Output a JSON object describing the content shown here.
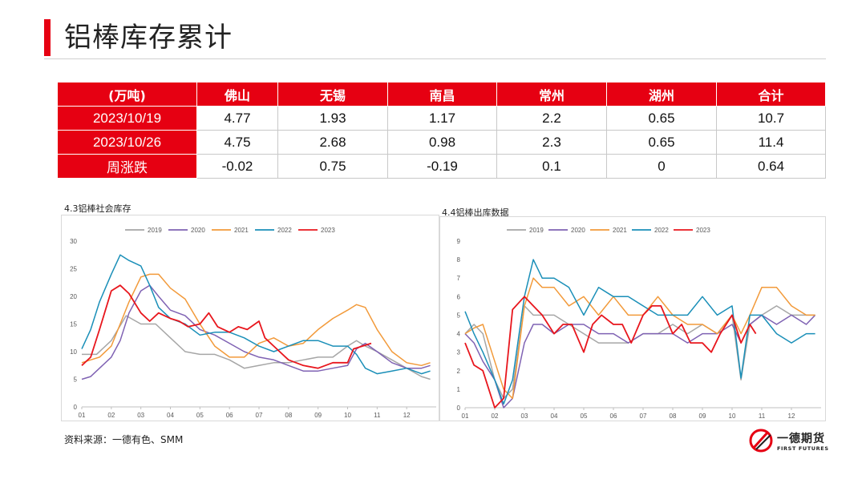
{
  "page_title": "铝棒库存累计",
  "table": {
    "headers": [
      "(万吨)",
      "佛山",
      "无锡",
      "南昌",
      "常州",
      "湖州",
      "合计"
    ],
    "rows": [
      {
        "label": "2023/10/19",
        "values": [
          "4.77",
          "1.93",
          "1.17",
          "2.2",
          "0.65",
          "10.7"
        ]
      },
      {
        "label": "2023/10/26",
        "values": [
          "4.75",
          "2.68",
          "0.98",
          "2.3",
          "0.65",
          "11.4"
        ]
      },
      {
        "label": "周涨跌",
        "values": [
          "-0.02",
          "0.75",
          "-0.19",
          "0.1",
          "0",
          "0.64"
        ]
      }
    ]
  },
  "colors": {
    "accent": "#e60012",
    "s2019": "#a6a6a6",
    "s2020": "#7f62b3",
    "s2021": "#f29a3a",
    "s2022": "#1a8fb8",
    "s2023": "#e8161d"
  },
  "chart_data": [
    {
      "type": "line",
      "title": "4.3铝棒社会库存",
      "x_ticks": [
        "01",
        "02",
        "03",
        "04",
        "05",
        "06",
        "07",
        "08",
        "09",
        "10",
        "11",
        "12"
      ],
      "ylim": [
        0,
        30
      ],
      "y_ticks": [
        "0",
        "5",
        "10",
        "15",
        "20",
        "25",
        "30"
      ],
      "x_domain": [
        1,
        13
      ],
      "series": [
        {
          "name": "2019",
          "color": "#a6a6a6",
          "x": [
            1,
            1.5,
            2,
            2.5,
            3,
            3.5,
            4,
            4.5,
            5,
            5.5,
            6,
            6.5,
            7,
            7.5,
            8,
            8.5,
            9,
            9.5,
            10,
            10.3,
            10.6,
            11,
            11.5,
            12,
            12.5,
            12.8
          ],
          "y": [
            9.5,
            9.5,
            12,
            16.5,
            15,
            15,
            12.5,
            10,
            9.5,
            9.5,
            8.5,
            7,
            7.5,
            8,
            8,
            8.5,
            9,
            9,
            11,
            12,
            11,
            10,
            8.5,
            7,
            5.5,
            5
          ]
        },
        {
          "name": "2020",
          "color": "#7f62b3",
          "x": [
            1,
            1.3,
            1.6,
            2,
            2.3,
            2.6,
            3,
            3.3,
            3.6,
            4,
            4.5,
            5,
            5.5,
            6,
            6.5,
            7,
            7.5,
            8,
            8.5,
            9,
            9.5,
            10,
            10.3,
            10.6,
            11,
            11.5,
            12,
            12.5,
            12.8
          ],
          "y": [
            5,
            5.5,
            7,
            9,
            12,
            17,
            21,
            22,
            20,
            17.5,
            16.5,
            14,
            13,
            11.5,
            10,
            9,
            8.5,
            7.5,
            6.5,
            6.5,
            7,
            7.5,
            10.5,
            11.5,
            10,
            8,
            7,
            7,
            7.5
          ]
        },
        {
          "name": "2021",
          "color": "#f29a3a",
          "x": [
            1,
            1.3,
            1.6,
            2,
            2.3,
            2.6,
            3,
            3.3,
            3.6,
            4,
            4.5,
            5,
            5.5,
            6,
            6.5,
            7,
            7.5,
            8,
            8.5,
            9,
            9.5,
            10,
            10.3,
            10.6,
            11,
            11.5,
            12,
            12.5,
            12.8
          ],
          "y": [
            8,
            8.5,
            9,
            11,
            15,
            19,
            23.5,
            24,
            24,
            21.5,
            19.5,
            15,
            11,
            9,
            9,
            11.5,
            12.5,
            11,
            11.5,
            14,
            16,
            17.5,
            18.5,
            18,
            14,
            10,
            8,
            7.5,
            8
          ]
        },
        {
          "name": "2022",
          "color": "#1a8fb8",
          "x": [
            1,
            1.3,
            1.6,
            2,
            2.3,
            2.6,
            3,
            3.3,
            3.6,
            4,
            4.5,
            5,
            5.5,
            6,
            6.5,
            7,
            7.5,
            8,
            8.5,
            9,
            9.5,
            10,
            10.3,
            10.6,
            11,
            11.5,
            12,
            12.5,
            12.8
          ],
          "y": [
            10.5,
            14,
            19,
            24,
            27.5,
            26.5,
            25.5,
            22,
            18,
            16,
            15,
            13,
            13.5,
            13.5,
            12.5,
            11,
            10,
            11,
            12,
            12,
            11,
            11,
            9.5,
            7,
            6,
            6.5,
            7,
            6,
            6.5
          ]
        },
        {
          "name": "2023",
          "color": "#e8161d",
          "x": [
            1,
            1.3,
            1.6,
            2,
            2.3,
            2.6,
            3,
            3.3,
            3.6,
            4,
            4.3,
            4.6,
            5,
            5.3,
            5.6,
            6,
            6.3,
            6.6,
            7,
            7.2,
            7.5,
            8,
            8.5,
            9,
            9.5,
            10,
            10.2,
            10.5,
            10.8
          ],
          "y": [
            7.5,
            9,
            14,
            21,
            22,
            20.5,
            17,
            15.5,
            17,
            16,
            15.5,
            14.5,
            15,
            17,
            14.5,
            13.5,
            14.5,
            14,
            15.5,
            12.5,
            11,
            8.5,
            7.5,
            7,
            8,
            8,
            10.5,
            11,
            11.5
          ]
        }
      ]
    },
    {
      "type": "line",
      "title": "4.4铝棒出库数据",
      "x_ticks": [
        "01",
        "02",
        "03",
        "04",
        "05",
        "06",
        "07",
        "08",
        "09",
        "10",
        "11",
        "12"
      ],
      "ylim": [
        0,
        9
      ],
      "y_ticks": [
        "0",
        "1",
        "2",
        "3",
        "4",
        "5",
        "6",
        "7",
        "8",
        "9"
      ],
      "x_domain": [
        1,
        13
      ],
      "series": [
        {
          "name": "2019",
          "color": "#a6a6a6",
          "x": [
            1,
            1.3,
            1.6,
            2,
            2.3,
            2.6,
            3,
            3.3,
            3.6,
            4,
            4.5,
            5,
            5.5,
            6,
            6.5,
            7,
            7.5,
            8,
            8.5,
            9,
            9.5,
            10,
            10.3,
            10.6,
            11,
            11.5,
            12,
            12.5,
            12.8
          ],
          "y": [
            4,
            4.5,
            4,
            1.5,
            0.5,
            1,
            5.5,
            5,
            5,
            5,
            4.5,
            4,
            3.5,
            3.5,
            3.5,
            4,
            4,
            4.5,
            4,
            4.5,
            4,
            5,
            1.5,
            4.5,
            5,
            5.5,
            5,
            5,
            5
          ]
        },
        {
          "name": "2020",
          "color": "#7f62b3",
          "x": [
            1,
            1.3,
            1.6,
            2,
            2.3,
            2.6,
            3,
            3.3,
            3.6,
            4,
            4.5,
            5,
            5.5,
            6,
            6.5,
            7,
            7.5,
            8,
            8.5,
            9,
            9.5,
            10,
            10.3,
            10.6,
            11,
            11.5,
            12,
            12.5,
            12.8
          ],
          "y": [
            4,
            3.5,
            2.5,
            1.5,
            0,
            0.5,
            3.5,
            4.5,
            4.5,
            4,
            4.5,
            4.5,
            4,
            4,
            3.5,
            4,
            4,
            4,
            3.5,
            4,
            4,
            4.5,
            3.5,
            4.5,
            5,
            4.5,
            5,
            4.5,
            5
          ]
        },
        {
          "name": "2021",
          "color": "#f29a3a",
          "x": [
            1,
            1.3,
            1.6,
            2,
            2.3,
            2.6,
            3,
            3.3,
            3.6,
            4,
            4.5,
            5,
            5.5,
            6,
            6.5,
            7,
            7.5,
            8,
            8.5,
            9,
            9.5,
            10,
            10.3,
            10.6,
            11,
            11.5,
            12,
            12.5,
            12.8
          ],
          "y": [
            4,
            4.3,
            4.5,
            2.5,
            1,
            0.5,
            5.5,
            7,
            6.5,
            6.5,
            5.5,
            6,
            5,
            6,
            5,
            5,
            6,
            5,
            4.5,
            4.5,
            4,
            5,
            4,
            5,
            6.5,
            6.5,
            5.5,
            5,
            5
          ]
        },
        {
          "name": "2022",
          "color": "#1a8fb8",
          "x": [
            1,
            1.3,
            1.6,
            2,
            2.3,
            2.6,
            3,
            3.3,
            3.6,
            4,
            4.5,
            5,
            5.5,
            6,
            6.5,
            7,
            7.5,
            8,
            8.5,
            9,
            9.5,
            10,
            10.3,
            10.6,
            11,
            11.5,
            12,
            12.5,
            12.8
          ],
          "y": [
            5.2,
            4,
            3,
            1.5,
            0.2,
            1.5,
            6,
            8,
            7,
            7,
            6.5,
            5,
            6.5,
            6,
            6,
            5.5,
            5,
            5,
            5,
            6,
            5,
            5.5,
            1.6,
            5,
            5,
            4,
            3.5,
            4,
            4
          ]
        },
        {
          "name": "2023",
          "color": "#e8161d",
          "x": [
            1,
            1.3,
            1.6,
            2,
            2.3,
            2.6,
            3,
            3.3,
            3.6,
            4,
            4.3,
            4.6,
            5,
            5.3,
            5.6,
            6,
            6.3,
            6.6,
            7,
            7.3,
            7.6,
            8,
            8.3,
            8.6,
            9,
            9.3,
            9.6,
            10,
            10.3,
            10.6,
            10.8
          ],
          "y": [
            3.5,
            2.3,
            2,
            0,
            0.5,
            5.3,
            6,
            5.5,
            5,
            4,
            4.5,
            4.5,
            3,
            4.5,
            5,
            4.5,
            4.5,
            3.5,
            5,
            5.5,
            5.5,
            4,
            4.5,
            3.5,
            3.5,
            3,
            4,
            5,
            3.5,
            4.5,
            4
          ]
        }
      ]
    }
  ],
  "source": "资料来源：一德有色、SMM",
  "logo": {
    "name": "一德期货",
    "en": "FIRST FUTURES"
  }
}
